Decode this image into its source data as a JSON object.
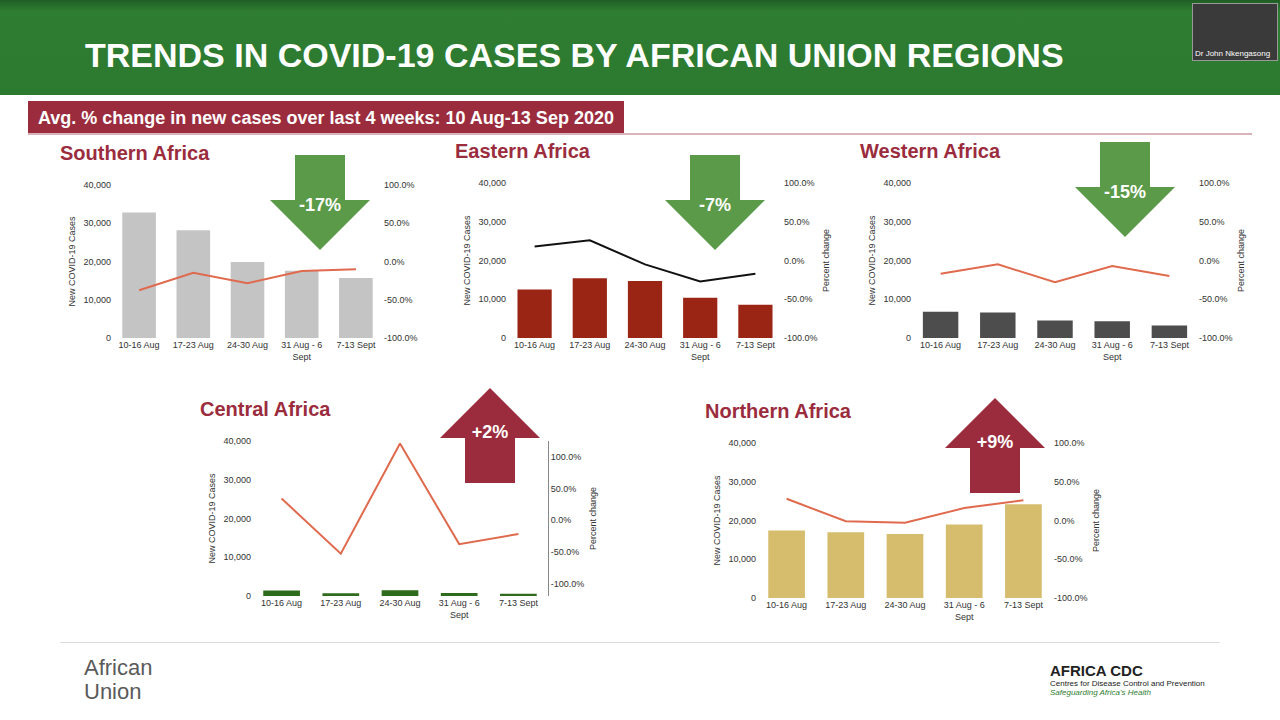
{
  "header": {
    "title": "TRENDS IN COVID-19 CASES BY AFRICAN UNION REGIONS",
    "subtitle": "Avg. % change in new cases over last 4 weeks: 10 Aug-13 Sep 2020"
  },
  "presenter": "Dr John Nkengasong",
  "chart_data": [
    {
      "type": "bar",
      "title": "Southern Africa",
      "categories": [
        "10-16 Aug",
        "17-23 Aug",
        "24-30 Aug",
        "31 Aug - 6 Sept",
        "7-13 Sept"
      ],
      "series": [
        {
          "type": "bar",
          "color": "#c4c4c4",
          "values": [
            32800,
            28200,
            19900,
            17600,
            15700
          ]
        },
        {
          "type": "line",
          "axis": "y2",
          "color": "#e06a4e",
          "values": [
            -37.5,
            -14.8,
            -28.4,
            -12.5,
            -10.2
          ]
        }
      ],
      "ylabel": "New COVID-19 Cases",
      "ylim": [
        0,
        40000
      ],
      "yticks": [
        0,
        {
          "value": 10000,
          "label": "10,000"
        },
        {
          "value": 20000,
          "label": "20,000"
        },
        {
          "value": 30000,
          "label": "30,000"
        },
        {
          "value": 40000,
          "label": "40,000"
        }
      ],
      "y2lim": [
        -100,
        100
      ],
      "y2ticks": [
        {
          "value": -100,
          "label": "-100.0%"
        },
        {
          "value": -50,
          "label": "-50.0%"
        },
        {
          "value": 0,
          "label": "0.0%"
        },
        {
          "value": 50,
          "label": "50.0%"
        },
        {
          "value": 100,
          "label": "100.0%"
        }
      ],
      "grid": false,
      "annotations": [
        {
          "text": "-17%",
          "marker": "arrow-down",
          "color": "#5a9a48"
        }
      ]
    },
    {
      "type": "bar",
      "title": "Eastern Africa",
      "categories": [
        "10-16 Aug",
        "17-23 Aug",
        "24-30 Aug",
        "31 Aug - 6 Sept",
        "7-13 Sept"
      ],
      "series": [
        {
          "type": "bar",
          "color": "#9b2515",
          "values": [
            12500,
            15400,
            14700,
            10400,
            8600
          ]
        },
        {
          "type": "line",
          "axis": "y2",
          "color": "#111111",
          "values": [
            18,
            26,
            -5,
            -27,
            -17
          ]
        }
      ],
      "ylabel": "New COVID-19 Cases",
      "y2label": "Percent change",
      "ylim": [
        0,
        40000
      ],
      "yticks": [
        0,
        {
          "value": 10000,
          "label": "10,000"
        },
        {
          "value": 20000,
          "label": "20,000"
        },
        {
          "value": 30000,
          "label": "30,000"
        },
        {
          "value": 40000,
          "label": "40,000"
        }
      ],
      "y2lim": [
        -100,
        100
      ],
      "y2ticks": [
        {
          "value": -100,
          "label": "-100.0%"
        },
        {
          "value": -50,
          "label": "-50.0%"
        },
        {
          "value": 0,
          "label": "0.0%"
        },
        {
          "value": 50,
          "label": "50.0%"
        },
        {
          "value": 100,
          "label": "100.0%"
        }
      ],
      "grid": false,
      "annotations": [
        {
          "text": "-7%",
          "marker": "arrow-down",
          "color": "#5a9a48"
        }
      ]
    },
    {
      "type": "bar",
      "title": "Western Africa",
      "categories": [
        "10-16 Aug",
        "17-23 Aug",
        "24-30 Aug",
        "31 Aug - 6 Sept",
        "7-13 Sept"
      ],
      "series": [
        {
          "type": "bar",
          "color": "#4d4d4d",
          "values": [
            6800,
            6600,
            4500,
            4300,
            3200
          ]
        },
        {
          "type": "line",
          "axis": "y2",
          "color": "#e06a4e",
          "values": [
            -17,
            -5,
            -28,
            -7,
            -20
          ]
        }
      ],
      "ylabel": "New COVID-19 Cases",
      "y2label": "Percent change",
      "ylim": [
        0,
        40000
      ],
      "yticks": [
        0,
        {
          "value": 10000,
          "label": "10,000"
        },
        {
          "value": 20000,
          "label": "20,000"
        },
        {
          "value": 30000,
          "label": "30,000"
        },
        {
          "value": 40000,
          "label": "40,000"
        }
      ],
      "y2lim": [
        -100,
        100
      ],
      "y2ticks": [
        {
          "value": -100,
          "label": "-100.0%"
        },
        {
          "value": -50,
          "label": "-50.0%"
        },
        {
          "value": 0,
          "label": "0.0%"
        },
        {
          "value": 50,
          "label": "50.0%"
        },
        {
          "value": 100,
          "label": "100.0%"
        }
      ],
      "grid": false,
      "annotations": [
        {
          "text": "-15%",
          "marker": "arrow-down",
          "color": "#5a9a48"
        }
      ]
    },
    {
      "type": "bar",
      "title": "Central Africa",
      "categories": [
        "10-16 Aug",
        "17-23 Aug",
        "24-30 Aug",
        "31 Aug - 6 Sept",
        "7-13 Sept"
      ],
      "series": [
        {
          "type": "bar",
          "color": "#2e6b1c",
          "values": [
            1400,
            700,
            1500,
            800,
            600
          ]
        },
        {
          "type": "line",
          "axis": "y2",
          "color": "#e06a4e",
          "values": [
            34,
            -53,
            121,
            -38,
            -22
          ]
        }
      ],
      "ylabel": "New COVID-19 Cases",
      "y2label": "Percent change",
      "ylim": [
        0,
        40000
      ],
      "yticks": [
        0,
        {
          "value": 10000,
          "label": "10,000"
        },
        {
          "value": 20000,
          "label": "20,000"
        },
        {
          "value": 30000,
          "label": "30,000"
        },
        {
          "value": 40000,
          "label": "40,000"
        }
      ],
      "y2lim": [
        -120,
        125
      ],
      "y2ticks": [
        {
          "value": -100,
          "label": "-100.0%"
        },
        {
          "value": -50,
          "label": "-50.0%"
        },
        {
          "value": 0,
          "label": "0.0%"
        },
        {
          "value": 50,
          "label": "50.0%"
        },
        {
          "value": 100,
          "label": "100.0%"
        }
      ],
      "grid": false,
      "annotations": [
        {
          "text": "+2%",
          "marker": "arrow-up",
          "color": "#9b2c3e"
        }
      ]
    },
    {
      "type": "bar",
      "title": "Northern Africa",
      "categories": [
        "10-16 Aug",
        "17-23 Aug",
        "24-30 Aug",
        "31 Aug - 6 Sept",
        "7-13 Sept"
      ],
      "series": [
        {
          "type": "bar",
          "color": "#d5bd6d",
          "values": [
            17400,
            17000,
            16500,
            19000,
            24200
          ]
        },
        {
          "type": "line",
          "axis": "y2",
          "color": "#e06a4e",
          "values": [
            28,
            -1,
            -3,
            16,
            26
          ]
        }
      ],
      "ylabel": "New COVID-19 Cases",
      "y2label": "Percent change",
      "ylim": [
        0,
        40000
      ],
      "yticks": [
        0,
        {
          "value": 10000,
          "label": "10,000"
        },
        {
          "value": 20000,
          "label": "20,000"
        },
        {
          "value": 30000,
          "label": "30,000"
        },
        {
          "value": 40000,
          "label": "40,000"
        }
      ],
      "y2lim": [
        -100,
        100
      ],
      "y2ticks": [
        {
          "value": -100,
          "label": "-100.0%"
        },
        {
          "value": -50,
          "label": "-50.0%"
        },
        {
          "value": 0,
          "label": "0.0%"
        },
        {
          "value": 50,
          "label": "50.0%"
        },
        {
          "value": 100,
          "label": "100.0%"
        }
      ],
      "grid": false,
      "annotations": [
        {
          "text": "+9%",
          "marker": "arrow-up",
          "color": "#9b2c3e"
        }
      ]
    }
  ],
  "footer": {
    "left": "African Union",
    "right": [
      "AFRICA CDC",
      "Centres for Disease Control and Prevention",
      "Safeguarding Africa's Health"
    ]
  }
}
